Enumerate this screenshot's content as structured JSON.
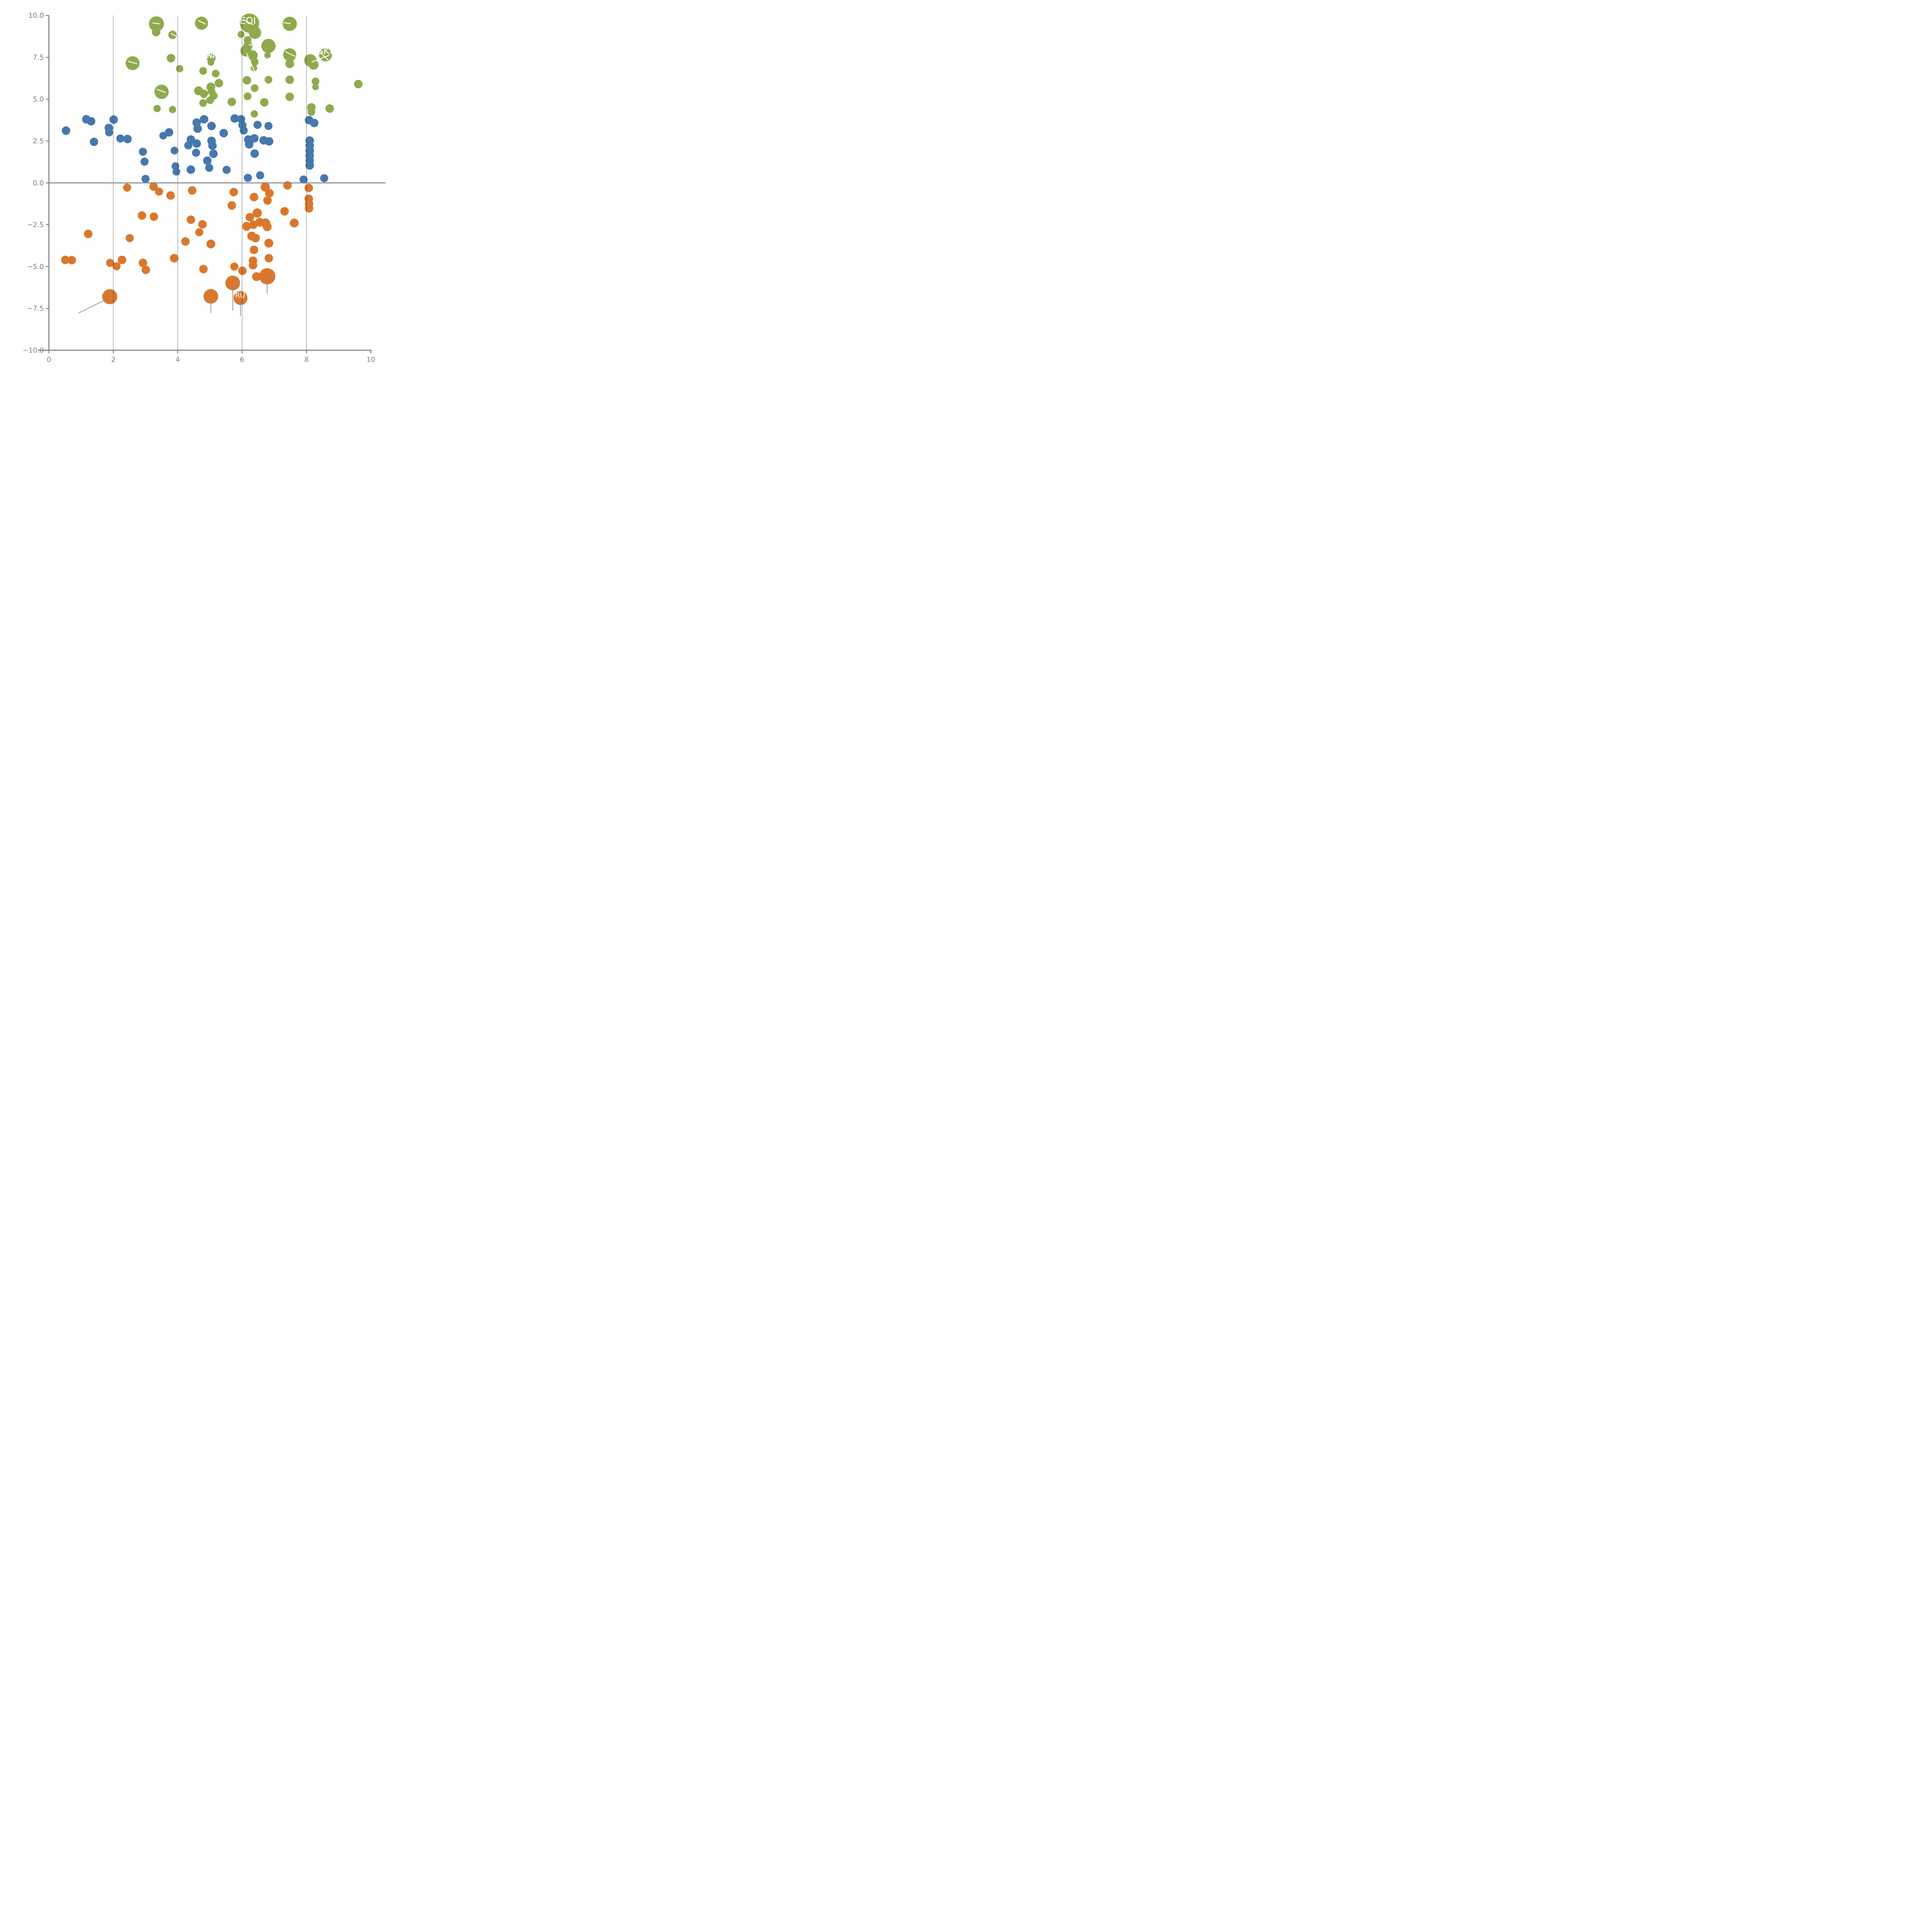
{
  "chart_data": {
    "type": "scatter",
    "title": "",
    "xlabel": "",
    "ylabel": "",
    "xlim": [
      0,
      10
    ],
    "ylim": [
      -10,
      10
    ],
    "grid": "vertical-only",
    "legend_position": "none",
    "x_ticks": [
      0,
      2,
      4,
      6,
      8,
      10
    ],
    "x_tick_labels": [
      "0",
      "2",
      "4",
      "6",
      "8",
      "10"
    ],
    "y_ticks": [
      10.0,
      7.5,
      5.0,
      2.5,
      0.0,
      -2.5,
      -5.0,
      -7.5,
      -10.0
    ],
    "y_tick_labels": [
      "10.0",
      "7.5",
      "5.0",
      "2.5",
      "0.0",
      "−2.5",
      "−5.0",
      "−7.5",
      "−10.0"
    ],
    "gridlines_x": [
      2,
      4,
      6,
      8
    ],
    "zero_line_y": 0,
    "series": [
      {
        "name": "green-cluster",
        "color": "#8faa4d",
        "points": [
          [
            3.34,
            9.5,
            19.5
          ],
          [
            3.33,
            9.01,
            11
          ],
          [
            3.84,
            8.84,
            11
          ],
          [
            4.74,
            9.54,
            17
          ],
          [
            2.6,
            7.15,
            18
          ],
          [
            3.79,
            7.45,
            11
          ],
          [
            4.06,
            6.82,
            9.5
          ],
          [
            4.79,
            6.69,
            10
          ],
          [
            3.5,
            5.44,
            18.5
          ],
          [
            3.36,
            4.44,
            9.5
          ],
          [
            3.84,
            4.38,
            9.5
          ],
          [
            4.65,
            5.5,
            11.5
          ],
          [
            4.82,
            5.34,
            10
          ],
          [
            4.79,
            4.77,
            10
          ],
          [
            4.81,
            5.3,
            10
          ],
          [
            6.23,
            9.54,
            25
          ],
          [
            6.4,
            8.97,
            16
          ],
          [
            5.97,
            8.87,
            9
          ],
          [
            6.17,
            8.54,
            10
          ],
          [
            6.18,
            8.18,
            12
          ],
          [
            6.12,
            7.88,
            14.5
          ],
          [
            6.33,
            7.62,
            13
          ],
          [
            6.39,
            7.22,
            10
          ],
          [
            6.37,
            6.86,
            8.5
          ],
          [
            6.82,
            8.18,
            18.5
          ],
          [
            6.79,
            7.62,
            8.5
          ],
          [
            7.48,
            9.5,
            18.5
          ],
          [
            7.48,
            7.65,
            17
          ],
          [
            7.48,
            7.12,
            11.5
          ],
          [
            8.12,
            7.32,
            16
          ],
          [
            8.22,
            7.06,
            13
          ],
          [
            8.59,
            7.65,
            17
          ],
          [
            8.28,
            6.06,
            10
          ],
          [
            8.28,
            5.73,
            8.5
          ],
          [
            5.04,
            7.45,
            11.5
          ],
          [
            5.03,
            7.19,
            8.5
          ],
          [
            5.18,
            6.53,
            10
          ],
          [
            5.28,
            5.96,
            11
          ],
          [
            5.03,
            5.73,
            11.5
          ],
          [
            5.05,
            5.47,
            10
          ],
          [
            5.12,
            5.2,
            10
          ],
          [
            5.01,
            4.94,
            10
          ],
          [
            5.68,
            4.84,
            11
          ],
          [
            6.15,
            6.13,
            11
          ],
          [
            6.17,
            5.17,
            10
          ],
          [
            6.39,
            5.66,
            10
          ],
          [
            6.69,
            4.81,
            11
          ],
          [
            6.82,
            6.16,
            10
          ],
          [
            6.38,
            4.12,
            9.5
          ],
          [
            7.48,
            6.16,
            11
          ],
          [
            7.48,
            5.14,
            11
          ],
          [
            8.15,
            4.51,
            11
          ],
          [
            8.15,
            4.24,
            10
          ],
          [
            8.72,
            4.44,
            11
          ],
          [
            9.61,
            5.9,
            11
          ]
        ]
      },
      {
        "name": "blue-cluster",
        "color": "#4678ad",
        "points": [
          [
            0.53,
            3.12,
            11
          ],
          [
            1.16,
            3.8,
            11
          ],
          [
            1.31,
            3.68,
            11
          ],
          [
            1.4,
            2.45,
            10.8
          ],
          [
            2.01,
            3.78,
            11
          ],
          [
            1.86,
            3.28,
            11
          ],
          [
            1.87,
            3.02,
            10.5
          ],
          [
            2.22,
            2.65,
            10.5
          ],
          [
            2.44,
            2.62,
            11
          ],
          [
            2.92,
            1.86,
            10.5
          ],
          [
            2.97,
            1.27,
            10.5
          ],
          [
            3.0,
            0.24,
            10.5
          ],
          [
            3.55,
            2.82,
            10
          ],
          [
            3.73,
            3.02,
            11
          ],
          [
            3.9,
            1.93,
            10
          ],
          [
            3.93,
            1.0,
            10
          ],
          [
            3.96,
            0.67,
            10
          ],
          [
            4.41,
            2.59,
            11
          ],
          [
            4.59,
            2.35,
            11
          ],
          [
            4.33,
            2.24,
            10.5
          ],
          [
            4.57,
            1.8,
            10.5
          ],
          [
            4.59,
            3.6,
            11
          ],
          [
            4.82,
            3.8,
            11
          ],
          [
            4.62,
            3.24,
            11
          ],
          [
            4.41,
            0.79,
            11
          ],
          [
            4.92,
            1.33,
            11
          ],
          [
            4.98,
            0.9,
            10.5
          ],
          [
            5.52,
            0.78,
            10.5
          ],
          [
            5.05,
            3.4,
            11
          ],
          [
            5.43,
            2.97,
            11
          ],
          [
            5.05,
            2.51,
            11
          ],
          [
            5.08,
            2.22,
            11
          ],
          [
            5.11,
            1.74,
            11
          ],
          [
            5.77,
            3.85,
            11
          ],
          [
            5.97,
            3.81,
            10.5
          ],
          [
            6.01,
            3.45,
            10.5
          ],
          [
            6.05,
            3.13,
            10.5
          ],
          [
            6.48,
            3.47,
            10.5
          ],
          [
            6.82,
            3.4,
            10.5
          ],
          [
            6.19,
            2.59,
            11
          ],
          [
            6.38,
            2.66,
            11
          ],
          [
            6.22,
            2.3,
            11
          ],
          [
            6.67,
            2.54,
            11
          ],
          [
            6.84,
            2.48,
            11
          ],
          [
            6.39,
            1.75,
            11
          ],
          [
            6.18,
            0.3,
            10.5
          ],
          [
            6.56,
            0.45,
            10.5
          ],
          [
            7.91,
            0.2,
            10.5
          ],
          [
            8.55,
            0.28,
            10.5
          ],
          [
            8.1,
            2.53,
            11
          ],
          [
            8.1,
            2.23,
            11
          ],
          [
            8.1,
            1.93,
            11
          ],
          [
            8.1,
            1.63,
            11
          ],
          [
            8.1,
            1.33,
            11
          ],
          [
            8.1,
            1.04,
            11
          ],
          [
            8.08,
            3.75,
            11
          ],
          [
            8.24,
            3.58,
            11
          ]
        ]
      },
      {
        "name": "orange-cluster",
        "color": "#d9782d",
        "points": [
          [
            2.43,
            -0.28,
            10.5
          ],
          [
            3.25,
            -0.22,
            11
          ],
          [
            3.42,
            -0.52,
            10.5
          ],
          [
            3.78,
            -0.75,
            11
          ],
          [
            4.45,
            -0.45,
            11
          ],
          [
            5.74,
            -0.55,
            11
          ],
          [
            6.37,
            -0.85,
            11
          ],
          [
            7.41,
            -0.15,
            11
          ],
          [
            6.72,
            -0.25,
            12
          ],
          [
            6.85,
            -0.62,
            11
          ],
          [
            6.79,
            -1.05,
            11
          ],
          [
            8.07,
            -0.3,
            11
          ],
          [
            8.07,
            -0.95,
            11
          ],
          [
            8.08,
            -1.25,
            11
          ],
          [
            8.08,
            -1.52,
            11
          ],
          [
            5.68,
            -1.35,
            11
          ],
          [
            7.32,
            -1.7,
            11
          ],
          [
            7.62,
            -2.4,
            11.5
          ],
          [
            6.47,
            -1.8,
            12
          ],
          [
            6.24,
            -2.05,
            11
          ],
          [
            6.14,
            -2.6,
            11.5
          ],
          [
            6.35,
            -2.5,
            11
          ],
          [
            6.55,
            -2.35,
            11.5
          ],
          [
            6.73,
            -2.4,
            12
          ],
          [
            6.78,
            -2.62,
            11.5
          ],
          [
            2.89,
            -1.95,
            11
          ],
          [
            3.26,
            -2.02,
            11
          ],
          [
            4.41,
            -2.2,
            11
          ],
          [
            4.77,
            -2.48,
            11
          ],
          [
            4.67,
            -2.95,
            10.5
          ],
          [
            1.22,
            -3.05,
            11
          ],
          [
            2.51,
            -3.3,
            10.5
          ],
          [
            4.24,
            -3.5,
            11
          ],
          [
            6.3,
            -3.18,
            11.5
          ],
          [
            6.42,
            -3.3,
            11
          ],
          [
            6.83,
            -3.6,
            11.5
          ],
          [
            5.03,
            -3.65,
            11.5
          ],
          [
            6.37,
            -4.0,
            11
          ],
          [
            6.83,
            -4.5,
            11
          ],
          [
            6.34,
            -4.65,
            11
          ],
          [
            6.34,
            -4.92,
            11
          ],
          [
            0.51,
            -4.6,
            11
          ],
          [
            0.71,
            -4.62,
            11
          ],
          [
            1.9,
            -4.78,
            10.5
          ],
          [
            2.1,
            -4.98,
            10.5
          ],
          [
            2.27,
            -4.6,
            11
          ],
          [
            2.92,
            -4.78,
            11
          ],
          [
            3.01,
            -5.2,
            11
          ],
          [
            3.89,
            -4.5,
            11
          ],
          [
            4.8,
            -5.15,
            11
          ],
          [
            5.76,
            -5.0,
            10.5
          ],
          [
            6.01,
            -5.25,
            11
          ],
          [
            6.45,
            -5.6,
            11.5
          ],
          [
            1.89,
            -6.8,
            19.5
          ],
          [
            5.03,
            -6.78,
            19
          ],
          [
            5.71,
            -5.98,
            19
          ],
          [
            5.95,
            -6.88,
            18
          ],
          [
            6.78,
            -5.58,
            21
          ]
        ]
      }
    ],
    "annotations": {
      "labels": [
        {
          "text": "EOI",
          "x": 6.18,
          "y": 9.66,
          "size": 24.5
        },
        {
          "text": "SKI",
          "x": 8.57,
          "y": 7.86,
          "size": 24.5
        },
        {
          "text": "WI",
          "x": 5.01,
          "y": 7.56,
          "size": 18
        },
        {
          "text": "MI",
          "x": 6.81,
          "y": 7.3,
          "size": 18
        },
        {
          "text": "RU",
          "x": 5.94,
          "y": -6.74,
          "size": 18
        }
      ],
      "white_leader_lines": [
        [
          3.22,
          9.56,
          3.44,
          9.5
        ],
        [
          4.64,
          9.7,
          4.86,
          9.49
        ],
        [
          3.8,
          8.92,
          3.96,
          8.76
        ],
        [
          2.47,
          7.26,
          2.73,
          7.12
        ],
        [
          3.37,
          5.58,
          3.62,
          5.4
        ],
        [
          6.14,
          7.73,
          6.44,
          6.44
        ],
        [
          6.02,
          9.76,
          6.34,
          9.46
        ],
        [
          7.3,
          9.57,
          7.5,
          9.52
        ],
        [
          7.36,
          7.82,
          7.65,
          7.56
        ],
        [
          8.28,
          8.1,
          8.66,
          7.36
        ],
        [
          8.4,
          7.28,
          8.62,
          6.94
        ],
        [
          4.98,
          7.62,
          5.12,
          7.5
        ],
        [
          6.22,
          8.26,
          6.55,
          8.16
        ],
        [
          8.17,
          7.22,
          8.7,
          7.62
        ]
      ],
      "gray_leader_lines": [
        [
          1.86,
          -6.88,
          0.92,
          -7.78
        ],
        [
          5.03,
          -6.95,
          5.03,
          -7.78
        ],
        [
          5.71,
          -6.05,
          5.71,
          -7.62
        ],
        [
          5.95,
          -6.95,
          5.95,
          -7.95
        ],
        [
          6.78,
          -5.62,
          6.78,
          -6.62
        ]
      ]
    }
  },
  "style": {
    "background": "#ffffff",
    "axis_color": "#808080",
    "tick_label_color": "#7f7f7f",
    "gridline_color": "#2d2d2d",
    "zero_line_color": "#808080",
    "white_leader_color": "#ffffff",
    "gray_leader_color": "#8a8a8a"
  }
}
